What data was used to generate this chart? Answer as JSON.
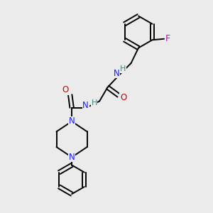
{
  "bg_color": "#ebebeb",
  "bond_color": "#000000",
  "bond_width": 1.4,
  "figsize": [
    3.0,
    3.0
  ],
  "dpi": 100,
  "atom_colors": {
    "N": "#1a1aff",
    "O": "#cc0000",
    "F": "#cc00cc",
    "H": "#2e8b8b"
  },
  "font_size": 7.5
}
